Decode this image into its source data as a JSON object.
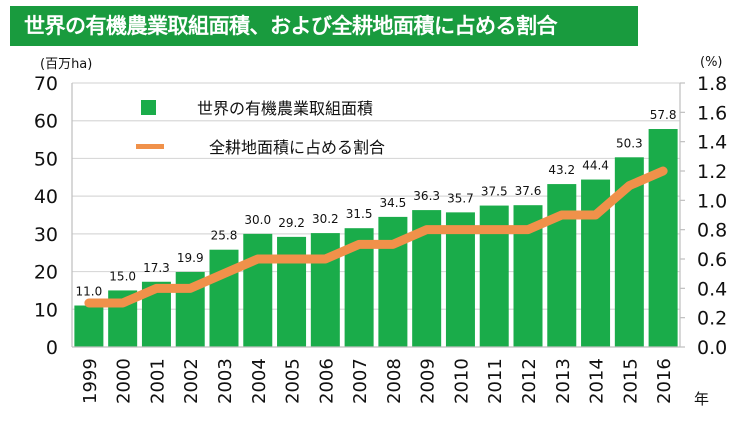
{
  "title": "世界の有機農業取組面積、および全耕地面積に占める割合",
  "colors": {
    "bar": "#1aac4a",
    "line": "#f0914a",
    "title_bg": "#199b3e",
    "grid": "#d9d9d9"
  },
  "chart_data": {
    "type": "bar",
    "title": "世界の有機農業取組面積、および全耕地面積に占める割合",
    "xlabel": "年",
    "ylabel": "(百万ha)",
    "y2label": "(%)",
    "ylim": [
      0,
      70
    ],
    "y2lim": [
      0,
      1.8
    ],
    "yticks": [
      "0",
      "10",
      "20",
      "30",
      "40",
      "50",
      "60",
      "70"
    ],
    "y2ticks": [
      "0.0",
      "0.2",
      "0.4",
      "0.6",
      "0.8",
      "1.0",
      "1.2",
      "1.4",
      "1.6",
      "1.8"
    ],
    "grid": true,
    "legend_position": "top-left",
    "categories": [
      "1999",
      "2000",
      "2001",
      "2002",
      "2003",
      "2004",
      "2005",
      "2006",
      "2007",
      "2008",
      "2009",
      "2010",
      "2011",
      "2012",
      "2013",
      "2014",
      "2015",
      "2016"
    ],
    "series": [
      {
        "name": "世界の有機農業取組面積",
        "type": "bar",
        "axis": "left",
        "values": [
          11.0,
          15.0,
          17.3,
          19.9,
          25.8,
          30.0,
          29.2,
          30.2,
          31.5,
          34.5,
          36.3,
          35.7,
          37.5,
          37.6,
          43.2,
          44.4,
          50.3,
          57.8
        ],
        "labels": [
          "11.0",
          "15.0",
          "17.3",
          "19.9",
          "25.8",
          "30.0",
          "29.2",
          "30.2",
          "31.5",
          "34.5",
          "36.3",
          "35.7",
          "37.5",
          "37.6",
          "43.2",
          "44.4",
          "50.3",
          "57.8"
        ]
      },
      {
        "name": "全耕地面積に占める割合",
        "type": "line",
        "axis": "right",
        "values": [
          0.3,
          0.3,
          0.4,
          0.4,
          0.5,
          0.6,
          0.6,
          0.6,
          0.7,
          0.7,
          0.8,
          0.8,
          0.8,
          0.8,
          0.9,
          0.9,
          1.1,
          1.2
        ]
      }
    ]
  }
}
